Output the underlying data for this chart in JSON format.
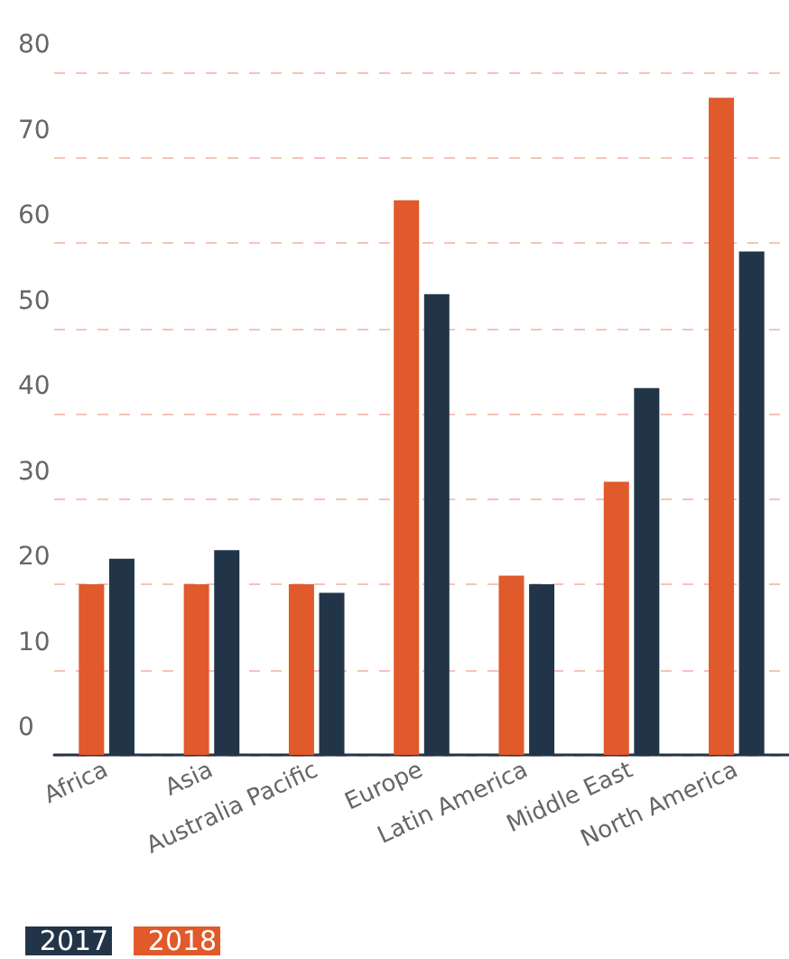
{
  "chart_data": {
    "type": "bar",
    "categories": [
      "Africa",
      "Asia",
      "Australia Pacific",
      "Europe",
      "Latin America",
      "Middle East",
      "North America"
    ],
    "series": [
      {
        "name": "2018",
        "color": "#e05a2b",
        "values": [
          20,
          20,
          20,
          65,
          21,
          32,
          77
        ]
      },
      {
        "name": "2017",
        "color": "#223548",
        "values": [
          23,
          24,
          19,
          54,
          20,
          43,
          59
        ]
      }
    ],
    "ylim": [
      0,
      80
    ],
    "yticks": [
      0,
      10,
      20,
      30,
      40,
      50,
      60,
      70,
      80
    ],
    "grid": "y",
    "legend": "bottom left"
  }
}
